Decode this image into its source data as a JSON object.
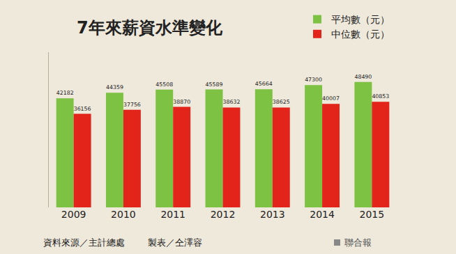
{
  "chart_data": {
    "type": "bar",
    "title": "7年來薪資水準變化",
    "categories": [
      "2009",
      "2010",
      "2011",
      "2012",
      "2013",
      "2014",
      "2015"
    ],
    "series": [
      {
        "name": "平均數（元）",
        "color": "#7dc242",
        "values": [
          42182,
          44359,
          45508,
          45589,
          45664,
          47300,
          48490
        ]
      },
      {
        "name": "中位數（元）",
        "color": "#e3241b",
        "values": [
          36156,
          37756,
          38870,
          38632,
          38625,
          40007,
          40853
        ]
      }
    ],
    "ylim": [
      0,
      60000
    ],
    "yticks": [],
    "data_labels": true,
    "tick_labels": "x",
    "legend": "top right",
    "grid": false,
    "annotations": [
      "資料來源／主計總處",
      "製表／仝澤容",
      "聯合報"
    ]
  }
}
